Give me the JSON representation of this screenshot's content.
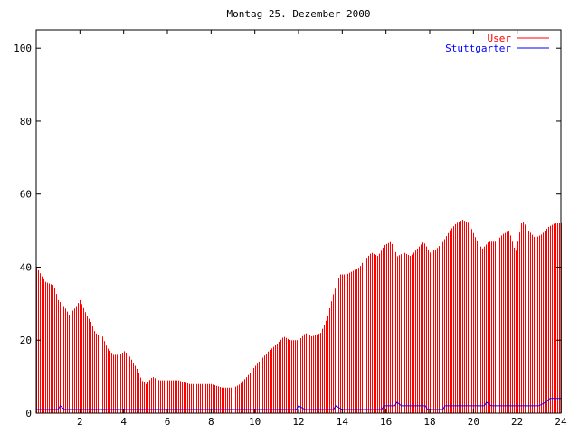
{
  "chart_data": {
    "type": "bar",
    "title": "Montag 25. Dezember 2000",
    "xlim": [
      0,
      24
    ],
    "ylim": [
      0,
      105
    ],
    "grid": false,
    "legend_position": "top-right",
    "x_ticks": [
      2,
      4,
      6,
      8,
      10,
      12,
      14,
      16,
      18,
      20,
      22,
      24
    ],
    "y_ticks": [
      0,
      20,
      40,
      60,
      80,
      100
    ],
    "series": [
      {
        "name": "User",
        "style": "impulses",
        "color": "#ff0000",
        "points": [
          [
            0.0,
            40
          ],
          [
            0.4,
            36
          ],
          [
            0.8,
            35
          ],
          [
            1.0,
            31
          ],
          [
            1.3,
            29
          ],
          [
            1.5,
            27
          ],
          [
            1.8,
            29
          ],
          [
            2.0,
            31
          ],
          [
            2.3,
            27
          ],
          [
            2.5,
            25
          ],
          [
            2.7,
            22
          ],
          [
            3.0,
            21
          ],
          [
            3.2,
            18
          ],
          [
            3.5,
            16
          ],
          [
            3.8,
            16
          ],
          [
            4.0,
            17
          ],
          [
            4.2,
            16
          ],
          [
            4.4,
            14
          ],
          [
            4.6,
            12
          ],
          [
            4.8,
            9
          ],
          [
            5.0,
            8
          ],
          [
            5.3,
            10
          ],
          [
            5.6,
            9
          ],
          [
            6.0,
            9
          ],
          [
            6.5,
            9
          ],
          [
            7.0,
            8
          ],
          [
            7.5,
            8
          ],
          [
            8.0,
            8
          ],
          [
            8.5,
            7
          ],
          [
            9.0,
            7
          ],
          [
            9.3,
            8
          ],
          [
            9.6,
            10
          ],
          [
            10.0,
            13
          ],
          [
            10.3,
            15
          ],
          [
            10.6,
            17
          ],
          [
            11.0,
            19
          ],
          [
            11.3,
            21
          ],
          [
            11.6,
            20
          ],
          [
            12.0,
            20
          ],
          [
            12.3,
            22
          ],
          [
            12.6,
            21
          ],
          [
            13.0,
            22
          ],
          [
            13.3,
            26
          ],
          [
            13.6,
            33
          ],
          [
            13.9,
            38
          ],
          [
            14.2,
            38
          ],
          [
            14.5,
            39
          ],
          [
            14.8,
            40
          ],
          [
            15.0,
            42
          ],
          [
            15.3,
            44
          ],
          [
            15.6,
            43
          ],
          [
            15.9,
            46
          ],
          [
            16.2,
            47
          ],
          [
            16.5,
            43
          ],
          [
            16.8,
            44
          ],
          [
            17.1,
            43
          ],
          [
            17.4,
            45
          ],
          [
            17.7,
            47
          ],
          [
            18.0,
            44
          ],
          [
            18.3,
            45
          ],
          [
            18.6,
            47
          ],
          [
            18.9,
            50
          ],
          [
            19.2,
            52
          ],
          [
            19.5,
            53
          ],
          [
            19.8,
            52
          ],
          [
            20.1,
            48
          ],
          [
            20.4,
            45
          ],
          [
            20.7,
            47
          ],
          [
            21.0,
            47
          ],
          [
            21.3,
            49
          ],
          [
            21.6,
            50
          ],
          [
            21.9,
            44
          ],
          [
            22.2,
            53
          ],
          [
            22.5,
            50
          ],
          [
            22.8,
            48
          ],
          [
            23.1,
            49
          ],
          [
            23.4,
            51
          ],
          [
            23.7,
            52
          ],
          [
            24.0,
            52
          ]
        ]
      },
      {
        "name": "Stuttgarter",
        "style": "line",
        "color": "#0000ff",
        "points": [
          [
            0,
            1
          ],
          [
            1.0,
            1
          ],
          [
            1.1,
            2
          ],
          [
            1.3,
            1
          ],
          [
            9,
            1
          ],
          [
            11.9,
            1
          ],
          [
            12.0,
            2
          ],
          [
            12.3,
            1
          ],
          [
            13.6,
            1
          ],
          [
            13.7,
            2
          ],
          [
            14.0,
            1
          ],
          [
            15.8,
            1
          ],
          [
            15.9,
            2
          ],
          [
            16.4,
            2
          ],
          [
            16.5,
            3
          ],
          [
            16.7,
            2
          ],
          [
            17.8,
            2
          ],
          [
            17.9,
            1
          ],
          [
            18.6,
            1
          ],
          [
            18.7,
            2
          ],
          [
            20.5,
            2
          ],
          [
            20.6,
            3
          ],
          [
            20.8,
            2
          ],
          [
            23.0,
            2
          ],
          [
            23.3,
            3
          ],
          [
            23.5,
            4
          ],
          [
            24,
            4
          ]
        ]
      }
    ]
  }
}
